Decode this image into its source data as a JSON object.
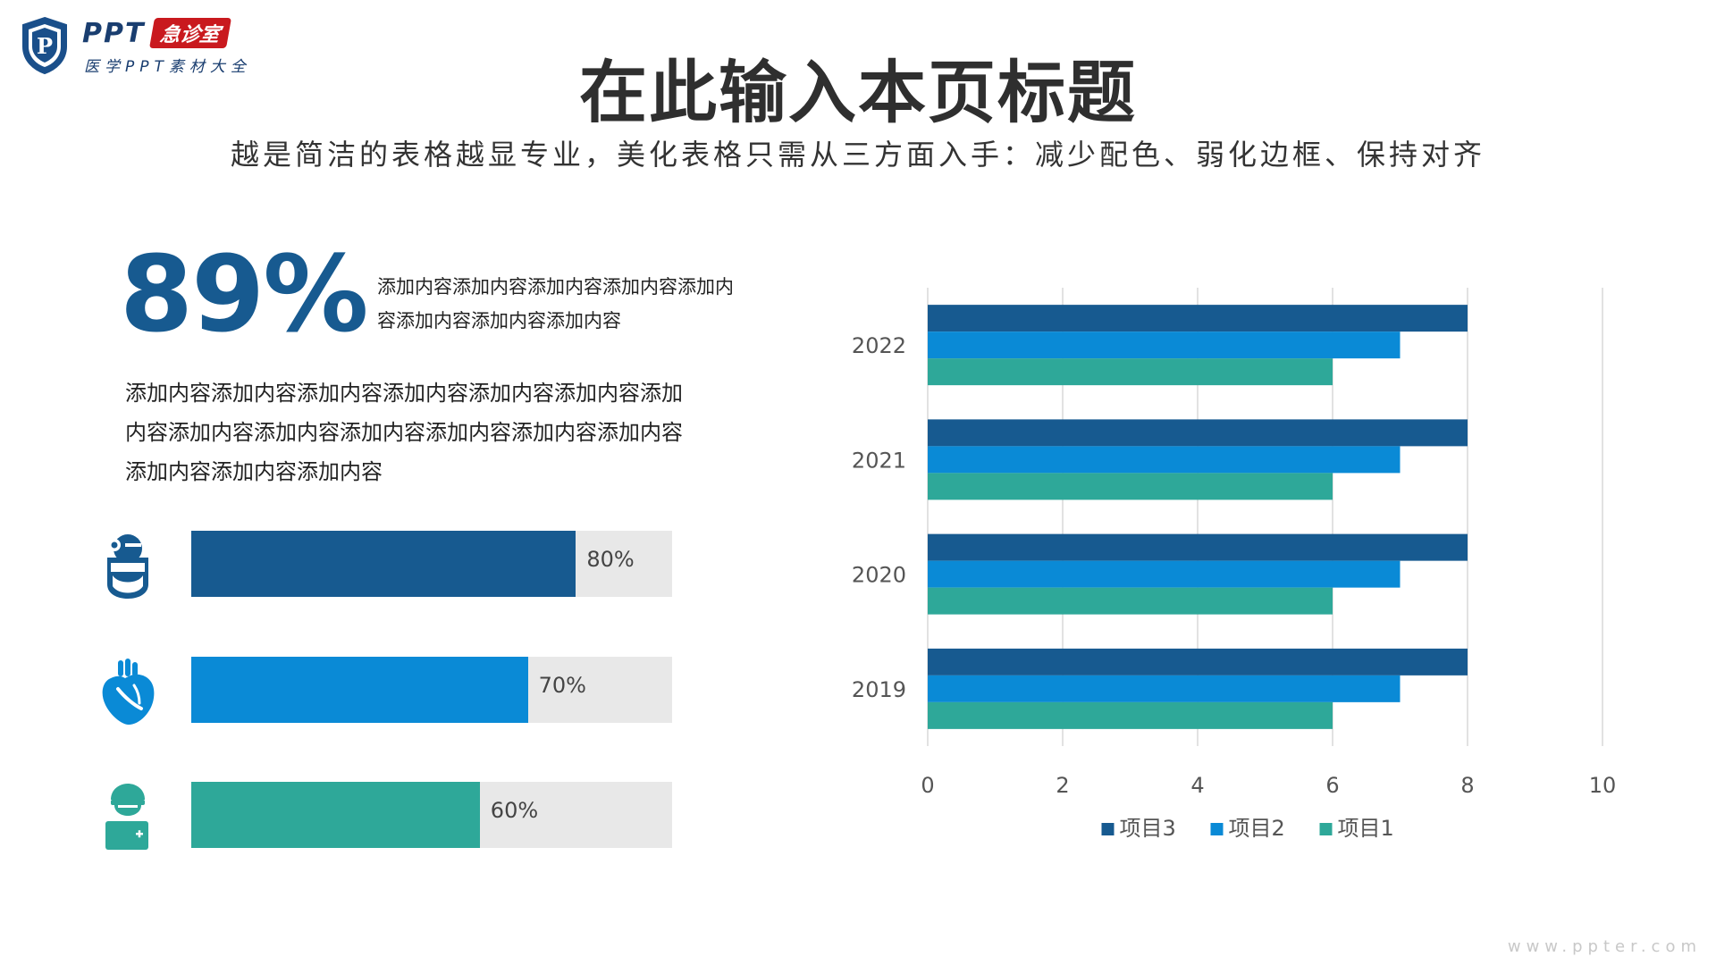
{
  "logo": {
    "brand": "PPT",
    "tag": "急诊室",
    "sub": "医学PPT素材大全",
    "shield_letter": "P"
  },
  "title": "在此输入本页标题",
  "subtitle": "越是简洁的表格越显专业，美化表格只需从三方面入手：减少配色、弱化边框、保持对齐",
  "stat": {
    "value": "89%",
    "description": "添加内容添加内容添加内容添加内容添加内容添加内容添加内容添加内容"
  },
  "paragraph": "添加内容添加内容添加内容添加内容添加内容添加内容添加内容添加内容添加内容添加内容添加内容添加内容添加内容添加内容添加内容添加内容",
  "progress": [
    {
      "icon": "surgeon-icon",
      "label": "80%",
      "value": 0.8,
      "color": "#175a90"
    },
    {
      "icon": "heart-icon",
      "label": "70%",
      "value": 0.7,
      "color": "#0a8ad6"
    },
    {
      "icon": "doctor-kit-icon",
      "label": "60%",
      "value": 0.6,
      "color": "#2ea899"
    }
  ],
  "chart_data": {
    "type": "bar",
    "orientation": "horizontal",
    "categories": [
      "2019",
      "2020",
      "2021",
      "2022"
    ],
    "series": [
      {
        "name": "项目3",
        "values": [
          8,
          8,
          8,
          8
        ],
        "color": "#175a90"
      },
      {
        "name": "项目2",
        "values": [
          7,
          7,
          7,
          7
        ],
        "color": "#0a8ad6"
      },
      {
        "name": "项目1",
        "values": [
          6,
          6,
          6,
          6
        ],
        "color": "#2ea899"
      }
    ],
    "xlim": [
      0,
      10
    ],
    "xticks": [
      "0",
      "2",
      "4",
      "6",
      "8",
      "10"
    ],
    "grid": true,
    "legend": "bottom"
  },
  "footer": "www.ppter.com"
}
